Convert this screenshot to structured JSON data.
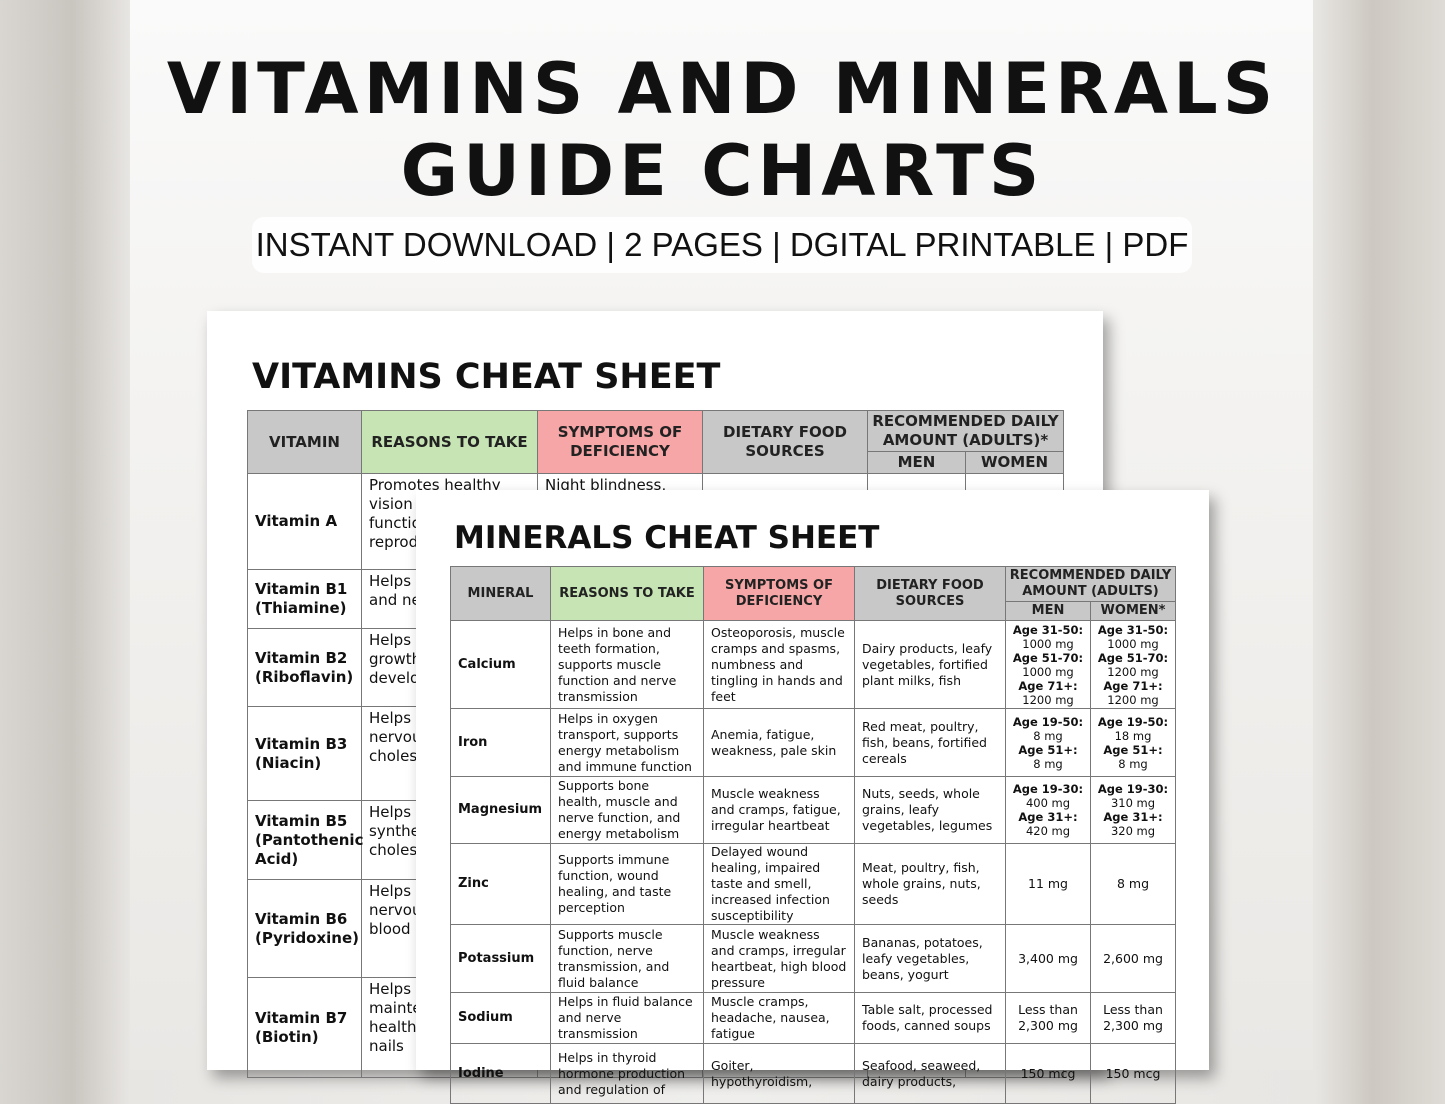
{
  "header": {
    "title_line1": "VITAMINS AND MINERALS",
    "title_line2": "GUIDE CHARTS",
    "subtitle": "INSTANT DOWNLOAD | 2 PAGES | DGITAL PRINTABLE | PDF"
  },
  "vitamins_sheet": {
    "title": "VITAMINS CHEAT SHEET",
    "columns": [
      "VITAMIN",
      "REASONS TO TAKE",
      "SYMPTOMS OF DEFICIENCY",
      "DIETARY FOOD SOURCES",
      "RECOMMENDED DAILY AMOUNT (ADULTS)*"
    ],
    "subcolumns": [
      "MEN",
      "WOMEN"
    ],
    "rows": [
      [
        "Vitamin A",
        "Promotes healthy vision and immune function, growth and reproduction",
        "Night blindness, dry"
      ],
      [
        "Vitamin B1 (Thiamine)",
        "Helps in metabolism and nervous function"
      ],
      [
        "Vitamin B2 (Riboflavin)",
        "Helps in metabolism, growth and development"
      ],
      [
        "Vitamin B3 (Niacin)",
        "Helps in metabolism, nervous function, cholesterol"
      ],
      [
        "Vitamin B5 (Pantothenic Acid)",
        "Helps in metabolism, synthesis and cholesterol"
      ],
      [
        "Vitamin B6 (Pyridoxine)",
        "Helps in metabolism, nervous function, blood"
      ],
      [
        "Vitamin B7 (Biotin)",
        "Helps in metabolism, maintenance of healthy hair and nails"
      ]
    ]
  },
  "minerals_sheet": {
    "title": "MINERALS CHEAT SHEET",
    "columns": [
      "MINERAL",
      "REASONS TO TAKE",
      "SYMPTOMS OF DEFICIENCY",
      "DIETARY FOOD SOURCES",
      "RECOMMENDED DAILY AMOUNT (ADULTS)"
    ],
    "subcolumns": [
      "MEN",
      "WOMEN*"
    ],
    "rows": [
      [
        "Calcium",
        "Helps in bone and teeth formation, supports muscle function and nerve transmission",
        "Osteoporosis, muscle cramps and spasms, numbness and tingling in hands and feet",
        "Dairy products, leafy vegetables, fortified plant milks, fish",
        [
          [
            "Age 31-50:",
            "1000 mg"
          ],
          [
            "Age 51-70:",
            "1000 mg"
          ],
          [
            "Age 71+:",
            "1200 mg"
          ]
        ],
        [
          [
            "Age 31-50:",
            "1000 mg"
          ],
          [
            "Age 51-70:",
            "1200 mg"
          ],
          [
            "Age 71+:",
            "1200 mg"
          ]
        ]
      ],
      [
        "Iron",
        "Helps in oxygen transport, supports energy metabolism and immune function",
        "Anemia, fatigue, weakness, pale skin",
        "Red meat, poultry, fish, beans, fortified cereals",
        [
          [
            "Age 19-50:",
            "8 mg"
          ],
          [
            "Age 51+:",
            "8 mg"
          ]
        ],
        [
          [
            "Age 19-50:",
            "18 mg"
          ],
          [
            "Age 51+:",
            "8 mg"
          ]
        ]
      ],
      [
        "Magnesium",
        "Supports bone health, muscle and nerve function, and energy metabolism",
        "Muscle weakness and cramps, fatigue, irregular heartbeat",
        "Nuts, seeds, whole grains, leafy vegetables, legumes",
        [
          [
            "Age 19-30:",
            "400 mg"
          ],
          [
            "Age 31+:",
            "420 mg"
          ]
        ],
        [
          [
            "Age 19-30:",
            "310 mg"
          ],
          [
            "Age 31+:",
            "320 mg"
          ]
        ]
      ],
      [
        "Zinc",
        "Supports immune function, wound healing, and taste perception",
        "Delayed wound healing, impaired taste and smell, increased infection susceptibility",
        "Meat, poultry, fish, whole grains, nuts, seeds",
        "11 mg",
        "8 mg"
      ],
      [
        "Potassium",
        "Supports muscle function, nerve transmission, and fluid balance",
        "Muscle weakness and cramps, irregular heartbeat, high blood pressure",
        "Bananas, potatoes, leafy vegetables, beans, yogurt",
        "3,400 mg",
        "2,600 mg"
      ],
      [
        "Sodium",
        "Helps in fluid balance and nerve transmission",
        "Muscle cramps, headache, nausea, fatigue",
        "Table salt, processed foods, canned soups",
        "Less than 2,300 mg",
        "Less than 2,300 mg"
      ],
      [
        "Iodine",
        "Helps in thyroid hormone production and regulation of",
        "Goiter, hypothyroidism,",
        "Seafood, seaweed, dairy products,",
        "150 mcg",
        "150 mcg"
      ]
    ]
  }
}
